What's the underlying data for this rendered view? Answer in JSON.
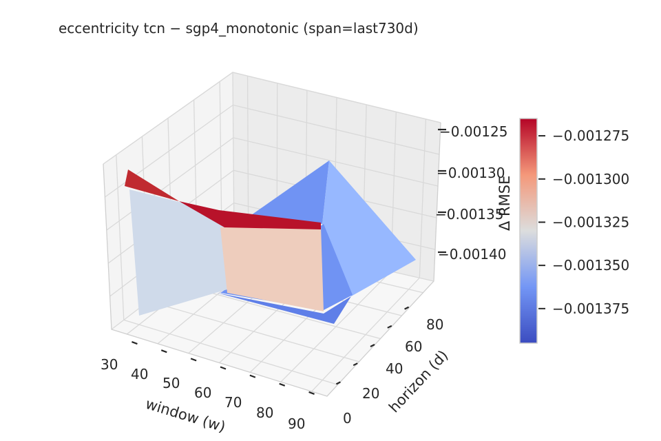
{
  "chart_data": {
    "type": "surface3d",
    "title": "eccentricity  tcn − sgp4_monotonic  (span=last730d)",
    "xlabel": "window (w)",
    "ylabel": "horizon (d)",
    "zlabel": "Δ RMSE",
    "x_ticks": [
      "30",
      "40",
      "50",
      "60",
      "70",
      "80",
      "90"
    ],
    "y_ticks": [
      "0",
      "20",
      "40",
      "60",
      "80"
    ],
    "z_ticks": [
      "−0.00125",
      "−0.00130",
      "−0.00135",
      "−0.00140"
    ],
    "colorbar_ticks": [
      "−0.001275",
      "−0.001300",
      "−0.001325",
      "−0.001350",
      "−0.001375"
    ],
    "colormap": "coolwarm",
    "colorbar_range": [
      -0.001395,
      -0.001265
    ],
    "faces": [
      {
        "value": -0.001338,
        "color": "#cfdaea"
      },
      {
        "value": -0.001267,
        "color": "#c02a30"
      },
      {
        "value": -0.00127,
        "color": "#b8122a"
      },
      {
        "value": -0.001317,
        "color": "#eecdbd"
      },
      {
        "value": -0.001365,
        "color": "#97b8ff"
      },
      {
        "value": -0.00138,
        "color": "#7093f3"
      },
      {
        "value": -0.00139,
        "color": "#5f7fe8"
      }
    ]
  }
}
